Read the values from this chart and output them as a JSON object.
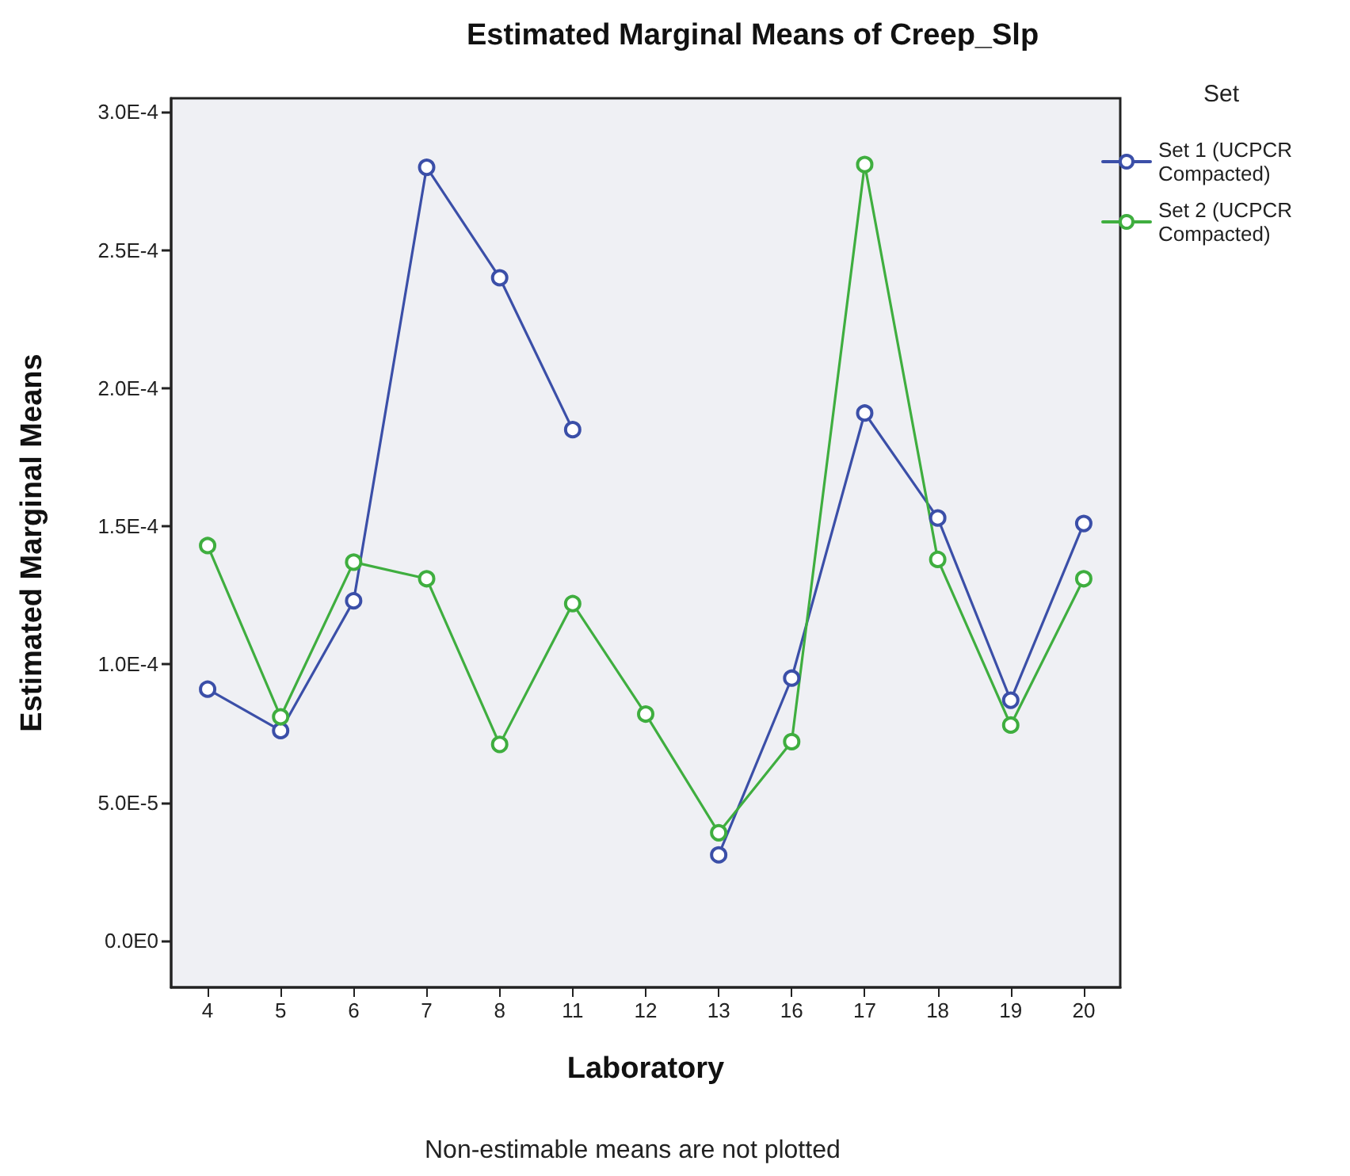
{
  "chart_data": {
    "type": "line",
    "title": "Estimated Marginal Means of Creep_Slp",
    "xlabel": "Laboratory",
    "ylabel": "Estimated Marginal Means",
    "legend_title": "Set",
    "legend": "right",
    "marker": "circle",
    "line_style": "solid",
    "grid": false,
    "categories": [
      "4",
      "5",
      "6",
      "7",
      "8",
      "11",
      "12",
      "13",
      "16",
      "17",
      "18",
      "19",
      "20"
    ],
    "series": [
      {
        "name": "Set 1 (UCPCR Compacted)",
        "color": "#3b4fa8",
        "values": [
          9.1e-05,
          7.6e-05,
          0.000123,
          0.00028,
          0.00024,
          0.000185,
          null,
          3.1e-05,
          9.5e-05,
          0.000191,
          0.000153,
          8.7e-05,
          0.000151
        ]
      },
      {
        "name": "Set 2 (UCPCR Compacted)",
        "color": "#3fae3f",
        "values": [
          0.000143,
          8.1e-05,
          0.000137,
          0.000131,
          7.1e-05,
          0.000122,
          8.2e-05,
          3.9e-05,
          7.2e-05,
          0.000281,
          0.000138,
          7.8e-05,
          0.000131
        ]
      }
    ],
    "ylim": [
      -1.7e-05,
      0.000305
    ],
    "yticks": [
      {
        "value": 0,
        "label": "0.0E0"
      },
      {
        "value": 5e-05,
        "label": "5.0E-5"
      },
      {
        "value": 0.0001,
        "label": "1.0E-4"
      },
      {
        "value": 0.00015,
        "label": "1.5E-4"
      },
      {
        "value": 0.0002,
        "label": "2.0E-4"
      },
      {
        "value": 0.00025,
        "label": "2.5E-4"
      },
      {
        "value": 0.0003,
        "label": "3.0E-4"
      }
    ],
    "annotations": [
      "Non-estimable means are not plotted"
    ]
  }
}
